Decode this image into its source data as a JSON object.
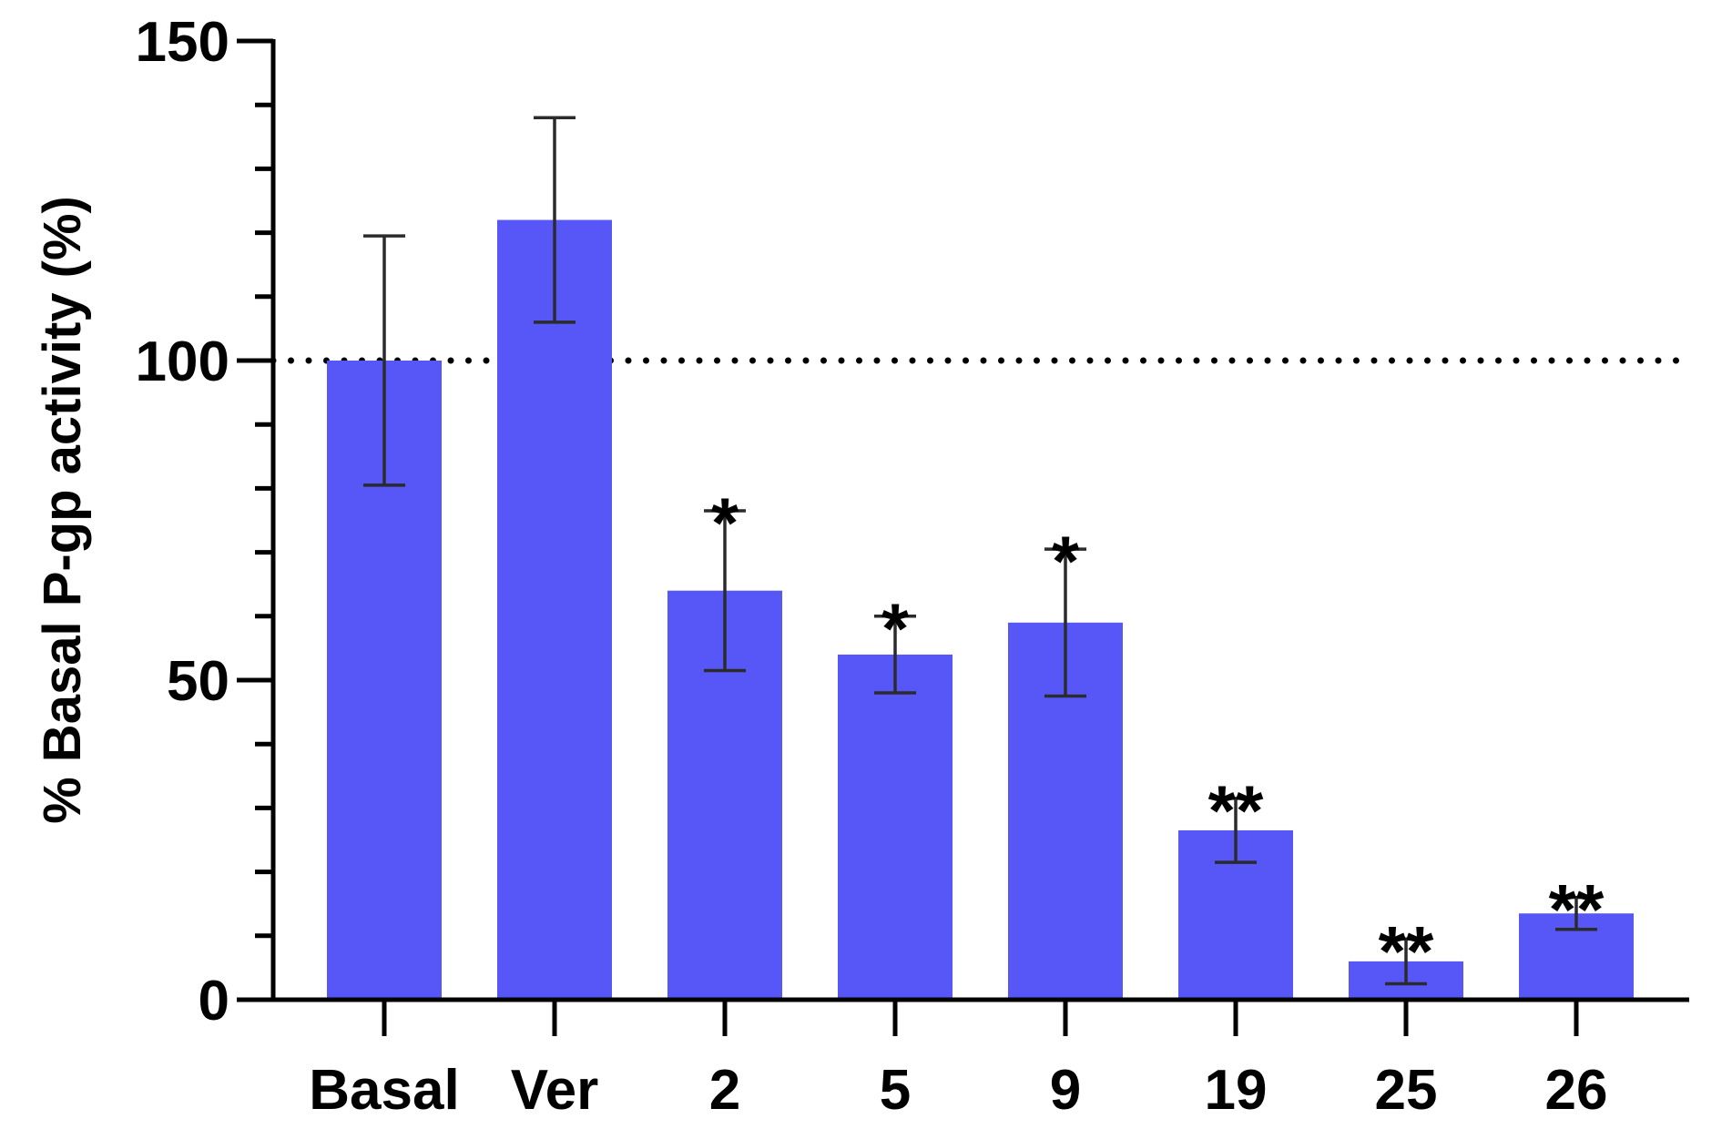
{
  "chart_data": {
    "type": "bar",
    "title": "",
    "xlabel": "",
    "ylabel": "% Basal P-gp activity (%)",
    "ylim": [
      0,
      150
    ],
    "yticks": [
      0,
      50,
      100,
      150
    ],
    "y_minor_step": 10,
    "reference_line": {
      "y": 100,
      "style": "dotted"
    },
    "categories": [
      "Basal",
      "Ver",
      "2",
      "5",
      "9",
      "19",
      "25",
      "26"
    ],
    "values": [
      100,
      122,
      64,
      54,
      59,
      26.5,
      6,
      13.5
    ],
    "error": [
      19.5,
      16,
      12.5,
      6,
      11.5,
      5,
      3.5,
      2.5
    ],
    "significance": [
      "",
      "",
      "*",
      "*",
      "*",
      "**",
      "**",
      "**"
    ],
    "bar_color": "#5757f7",
    "grid": false,
    "legend": "none"
  }
}
